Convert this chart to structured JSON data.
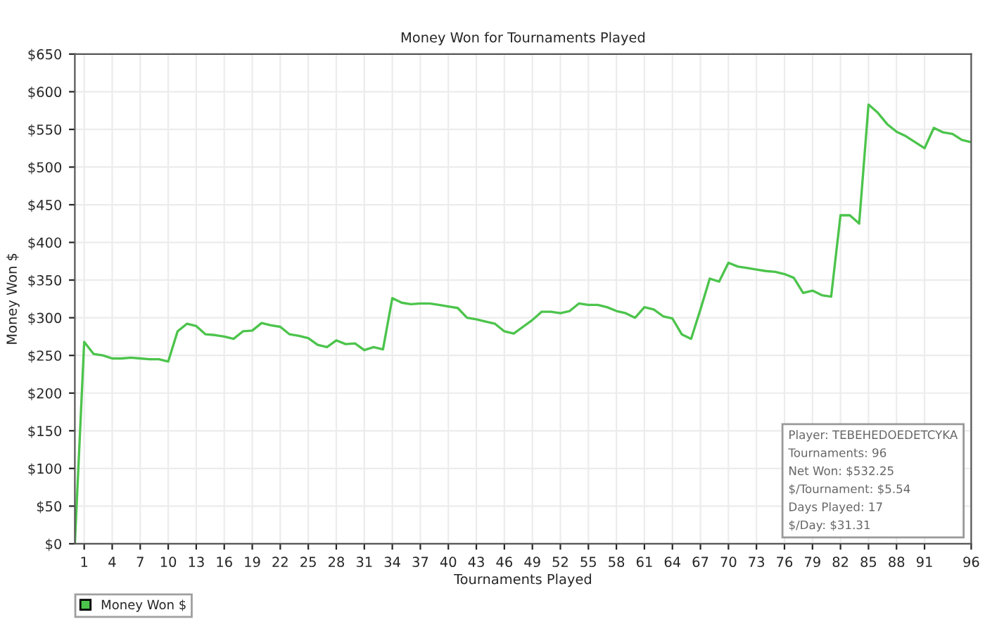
{
  "chart_data": {
    "type": "line",
    "title": "Money Won for Tournaments Played",
    "xlabel": "Tournaments Played",
    "ylabel": "Money Won $",
    "x": [
      0,
      1,
      2,
      3,
      4,
      5,
      6,
      7,
      8,
      9,
      10,
      11,
      12,
      13,
      14,
      15,
      16,
      17,
      18,
      19,
      20,
      21,
      22,
      23,
      24,
      25,
      26,
      27,
      28,
      29,
      30,
      31,
      32,
      33,
      34,
      35,
      36,
      37,
      38,
      39,
      40,
      41,
      42,
      43,
      44,
      45,
      46,
      47,
      48,
      49,
      50,
      51,
      52,
      53,
      54,
      55,
      56,
      57,
      58,
      59,
      60,
      61,
      62,
      63,
      64,
      65,
      66,
      67,
      68,
      69,
      70,
      71,
      72,
      73,
      74,
      75,
      76,
      77,
      78,
      79,
      80,
      81,
      82,
      83,
      84,
      85,
      86,
      87,
      88,
      89,
      90,
      91,
      92,
      93,
      94,
      95,
      96
    ],
    "series": [
      {
        "name": "Money Won $",
        "color": "#4cc44c",
        "values": [
          0,
          268,
          252,
          250,
          246,
          246,
          247,
          246,
          245,
          245,
          242,
          282,
          292,
          289,
          278,
          277,
          275,
          272,
          282,
          283,
          293,
          290,
          288,
          278,
          276,
          273,
          264,
          261,
          270,
          265,
          266,
          257,
          261,
          258,
          326,
          320,
          318,
          319,
          319,
          317,
          315,
          313,
          300,
          298,
          295,
          292,
          282,
          279,
          288,
          297,
          308,
          308,
          306,
          309,
          319,
          317,
          317,
          314,
          309,
          306,
          300,
          314,
          311,
          302,
          299,
          278,
          272,
          311,
          352,
          348,
          373,
          368,
          366,
          364,
          362,
          361,
          358,
          353,
          333,
          336,
          330,
          328,
          436,
          436,
          425,
          583,
          572,
          557,
          547,
          541,
          533,
          525,
          552,
          546,
          544,
          536,
          533
        ]
      }
    ],
    "xlim": [
      0,
      96
    ],
    "xticks": [
      1,
      4,
      7,
      10,
      13,
      16,
      19,
      22,
      25,
      28,
      31,
      34,
      37,
      40,
      43,
      46,
      49,
      52,
      55,
      58,
      61,
      64,
      67,
      70,
      73,
      76,
      79,
      82,
      85,
      88,
      91,
      96
    ],
    "ylim": [
      0,
      650
    ],
    "yticks": [
      {
        "value": 0,
        "label": "$0"
      },
      {
        "value": 50,
        "label": "$50"
      },
      {
        "value": 100,
        "label": "$100"
      },
      {
        "value": 150,
        "label": "$150"
      },
      {
        "value": 200,
        "label": "$200"
      },
      {
        "value": 250,
        "label": "$250"
      },
      {
        "value": 300,
        "label": "$300"
      },
      {
        "value": 350,
        "label": "$350"
      },
      {
        "value": 400,
        "label": "$400"
      },
      {
        "value": 450,
        "label": "$450"
      },
      {
        "value": 500,
        "label": "$500"
      },
      {
        "value": 550,
        "label": "$550"
      },
      {
        "value": 600,
        "label": "$600"
      },
      {
        "value": 650,
        "label": "$650"
      }
    ],
    "grid": true,
    "legend": "bottom left",
    "marker": "none",
    "line_style": "solid",
    "annotations": [
      "Player: TEBEHEDOEDETCYKA",
      "Tournaments: 96",
      "Net Won: $532.25",
      "$/Tournament: $5.54",
      "Days Played: 17",
      "$/Day: $31.31"
    ]
  }
}
